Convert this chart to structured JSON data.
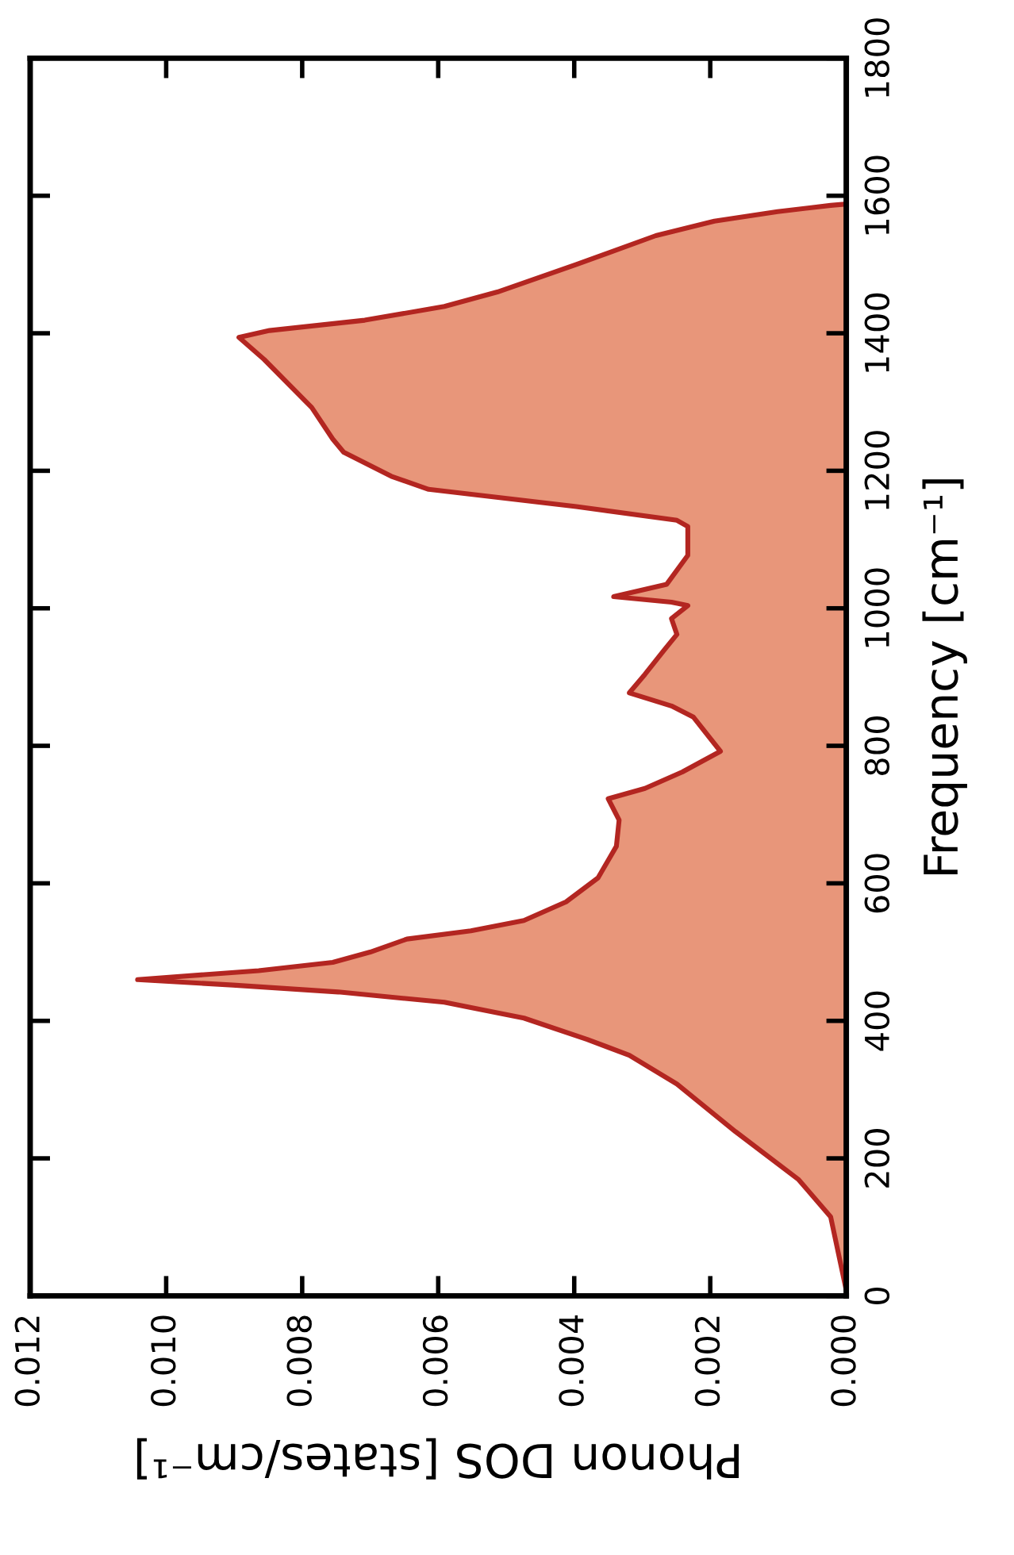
{
  "chart_data": {
    "type": "area",
    "orientation": "horizontal",
    "xlabel": "Phonon DOS [states/cm⁻¹]",
    "ylabel": "Frequency [cm⁻¹]",
    "x": [
      8,
      115,
      169,
      239,
      308,
      350,
      373,
      404,
      427,
      442,
      452,
      460,
      473,
      485,
      500,
      519,
      531,
      546,
      573,
      608,
      654,
      692,
      723,
      738,
      762,
      792,
      842,
      858,
      877,
      904,
      939,
      962,
      985,
      1004,
      1009,
      1017,
      1035,
      1077,
      1119,
      1128,
      1148,
      1173,
      1192,
      1227,
      1246,
      1292,
      1362,
      1394,
      1404,
      1419,
      1439,
      1460,
      1500,
      1542,
      1563,
      1577,
      1586,
      1588
    ],
    "series": [
      {
        "color": "#e8967a",
        "values": [
          0,
          0.00023,
          0.0007,
          0.00163,
          0.00249,
          0.00319,
          0.00381,
          0.00474,
          0.00591,
          0.00747,
          0.00902,
          0.01042,
          0.00864,
          0.00755,
          0.007,
          0.00646,
          0.00552,
          0.00474,
          0.00412,
          0.00365,
          0.00338,
          0.00334,
          0.0035,
          0.00296,
          0.00241,
          0.00185,
          0.00225,
          0.00257,
          0.00319,
          0.00296,
          0.00268,
          0.00249,
          0.00257,
          0.00233,
          0.00257,
          0.00342,
          0.00264,
          0.00233,
          0.00233,
          0.00249,
          0.00397,
          0.00614,
          0.00669,
          0.00739,
          0.00755,
          0.00786,
          0.00856,
          0.00893,
          0.00848,
          0.00708,
          0.00591,
          0.00513,
          0.00397,
          0.0028,
          0.00194,
          0.00101,
          0.00023,
          0
        ]
      }
    ],
    "xlim": [
      0.012,
      0
    ],
    "xticks": [
      {
        "value": 0.012,
        "label": "0.012"
      },
      {
        "value": 0.01,
        "label": "0.010"
      },
      {
        "value": 0.008,
        "label": "0.008"
      },
      {
        "value": 0.006,
        "label": "0.006"
      },
      {
        "value": 0.004,
        "label": "0.004"
      },
      {
        "value": 0.002,
        "label": "0.002"
      },
      {
        "value": 0,
        "label": "0.000"
      }
    ],
    "ylim": [
      0,
      1800
    ],
    "yticks": [
      0,
      200,
      400,
      600,
      800,
      1000,
      1200,
      1400,
      1600,
      1800
    ]
  }
}
